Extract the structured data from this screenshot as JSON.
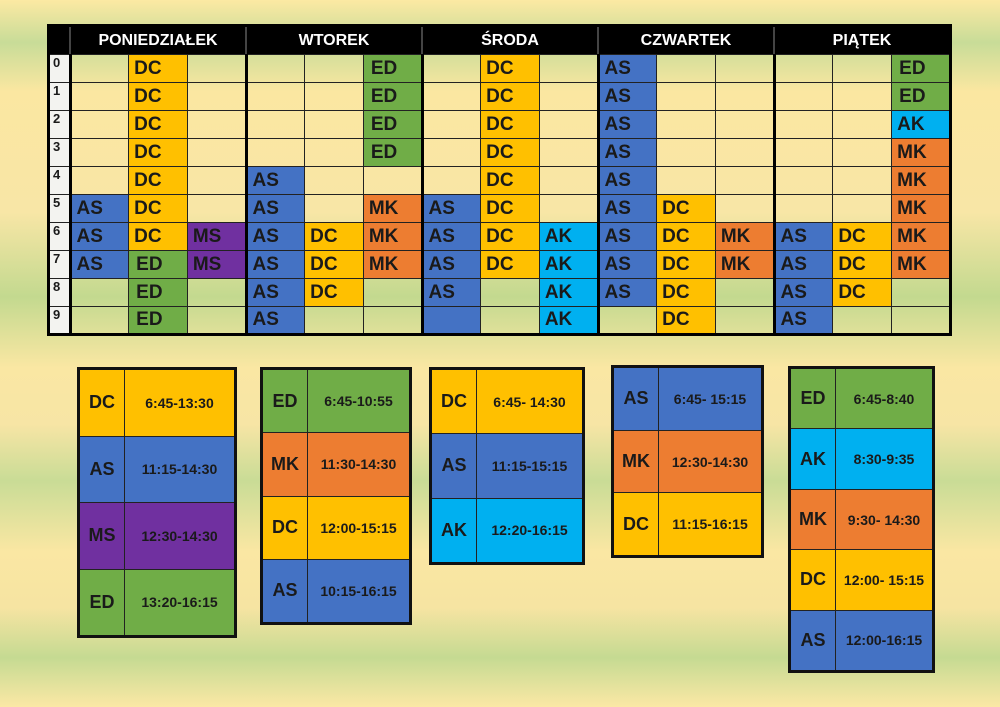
{
  "days": [
    "PONIEDZIAŁEK",
    "WTOREK",
    "ŚRODA",
    "CZWARTEK",
    "PIĄTEK"
  ],
  "row_labels": [
    "0",
    "1",
    "2",
    "3",
    "4",
    "5",
    "6",
    "7",
    "8",
    "9"
  ],
  "colors": {
    "DC": "#ffc000",
    "ED": "#70ad47",
    "AS": "#4472c4",
    "MS": "#7030a0",
    "MK": "#ed7d31",
    "AK": "#00b0f0"
  },
  "grid": [
    [
      [
        "",
        "DC",
        ""
      ],
      [
        "",
        "",
        "ED"
      ],
      [
        "",
        "DC",
        ""
      ],
      [
        "AS",
        "",
        ""
      ],
      [
        "",
        "",
        "ED"
      ]
    ],
    [
      [
        "",
        "DC",
        ""
      ],
      [
        "",
        "",
        "ED"
      ],
      [
        "",
        "DC",
        ""
      ],
      [
        "AS",
        "",
        ""
      ],
      [
        "",
        "",
        "ED"
      ]
    ],
    [
      [
        "",
        "DC",
        ""
      ],
      [
        "",
        "",
        "ED"
      ],
      [
        "",
        "DC",
        ""
      ],
      [
        "AS",
        "",
        ""
      ],
      [
        "",
        "",
        "AK"
      ]
    ],
    [
      [
        "",
        "DC",
        ""
      ],
      [
        "",
        "",
        "ED"
      ],
      [
        "",
        "DC",
        ""
      ],
      [
        "AS",
        "",
        ""
      ],
      [
        "",
        "",
        "MK"
      ]
    ],
    [
      [
        "",
        "DC",
        ""
      ],
      [
        "AS",
        "",
        ""
      ],
      [
        "",
        "DC",
        ""
      ],
      [
        "AS",
        "",
        ""
      ],
      [
        "",
        "",
        "MK"
      ]
    ],
    [
      [
        "AS",
        "DC",
        ""
      ],
      [
        "AS",
        "",
        "MK"
      ],
      [
        "AS",
        "DC",
        ""
      ],
      [
        "AS",
        "DC",
        ""
      ],
      [
        "",
        "",
        "MK"
      ]
    ],
    [
      [
        "AS",
        "DC",
        "MS"
      ],
      [
        "AS",
        "DC",
        "MK"
      ],
      [
        "AS",
        "DC",
        "AK"
      ],
      [
        "AS",
        "DC",
        "MK"
      ],
      [
        "AS",
        "DC",
        "MK"
      ]
    ],
    [
      [
        "AS",
        "ED",
        "MS"
      ],
      [
        "AS",
        "DC",
        "MK"
      ],
      [
        "AS",
        "DC",
        "AK"
      ],
      [
        "AS",
        "DC",
        "MK"
      ],
      [
        "AS",
        "DC",
        "MK"
      ]
    ],
    [
      [
        "",
        "ED",
        ""
      ],
      [
        "AS",
        "DC",
        ""
      ],
      [
        "AS",
        "",
        "AK"
      ],
      [
        "AS",
        "DC",
        ""
      ],
      [
        "AS",
        "DC",
        ""
      ]
    ],
    [
      [
        "",
        "ED",
        ""
      ],
      [
        "AS",
        "",
        ""
      ],
      [
        "",
        "",
        "AK"
      ],
      [
        "",
        "DC",
        ""
      ],
      [
        "AS",
        "",
        ""
      ]
    ]
  ],
  "grid_fill_only": [
    [
      9,
      2,
      0
    ]
  ],
  "legends": [
    {
      "day": "PONIEDZIAŁEK",
      "entries": [
        {
          "code": "DC",
          "time": "6:45-13:30"
        },
        {
          "code": "AS",
          "time": "11:15-14:30"
        },
        {
          "code": "MS",
          "time": "12:30-14:30"
        },
        {
          "code": "ED",
          "time": "13:20-16:15"
        }
      ]
    },
    {
      "day": "WTOREK",
      "entries": [
        {
          "code": "ED",
          "time": "6:45-10:55"
        },
        {
          "code": "MK",
          "time": "11:30-14:30"
        },
        {
          "code": "DC",
          "time": "12:00-15:15"
        },
        {
          "code": "AS",
          "time": "10:15-16:15"
        }
      ]
    },
    {
      "day": "ŚRODA",
      "entries": [
        {
          "code": "DC",
          "time": "6:45- 14:30"
        },
        {
          "code": "AS",
          "time": "11:15-15:15"
        },
        {
          "code": "AK",
          "time": "12:20-16:15"
        }
      ]
    },
    {
      "day": "CZWARTEK",
      "entries": [
        {
          "code": "AS",
          "time": "6:45- 15:15"
        },
        {
          "code": "MK",
          "time": "12:30-14:30"
        },
        {
          "code": "DC",
          "time": "11:15-16:15"
        }
      ]
    },
    {
      "day": "PIĄTEK",
      "entries": [
        {
          "code": "ED",
          "time": "6:45-8:40"
        },
        {
          "code": "AK",
          "time": "8:30-9:35"
        },
        {
          "code": "MK",
          "time": "9:30- 14:30"
        },
        {
          "code": "DC",
          "time": "12:00- 15:15"
        },
        {
          "code": "AS",
          "time": "12:00-16:15"
        }
      ]
    }
  ]
}
